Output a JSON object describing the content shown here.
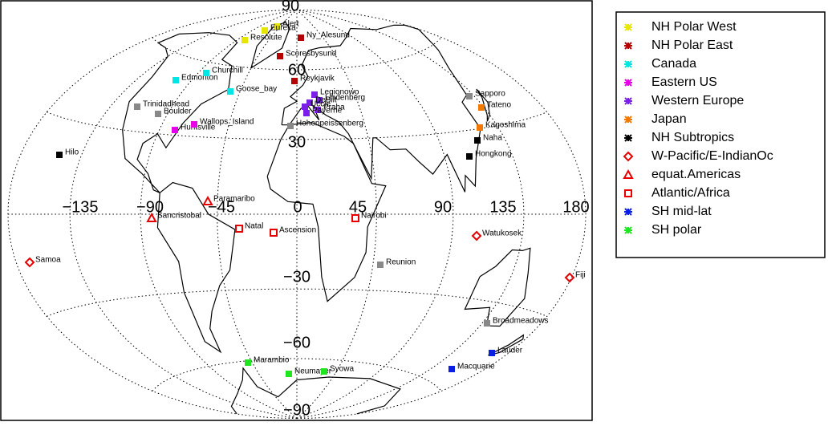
{
  "map": {
    "lat_labels": [
      "90",
      "60",
      "30",
      "−30",
      "−60",
      "−90"
    ],
    "lon_labels": [
      "−135",
      "−90",
      "−45",
      "0",
      "45",
      "90",
      "135",
      "180"
    ],
    "stations": [
      "Alert",
      "Eureka",
      "Resolute",
      "Ny_Alesund",
      "Scoresbysund",
      "Reykjavik",
      "Edmonton",
      "Churchill",
      "Goose_bay",
      "Huntsville",
      "Wallops_Island",
      "Legionowo",
      "Lindenberg",
      "DeBilt",
      "Uccle",
      "Praha",
      "Payerne",
      "Tateno",
      "Kagoshima",
      "Hilo",
      "Naha",
      "Hongkong",
      "Samoa",
      "Watukosek",
      "Fiji",
      "Paramaribo",
      "Sancristobal",
      "Natal",
      "Ascension",
      "Nairobi",
      "Lauder",
      "Macquarie",
      "Marambio",
      "Neumayer",
      "Syowa",
      "Trinidadhead",
      "Boulder",
      "Sapporo",
      "Hohenpeissenberg",
      "Reunion",
      "Broadmeadows"
    ]
  },
  "legend": {
    "items": [
      {
        "label": "NH Polar West",
        "color": "#e6e600"
      },
      {
        "label": "NH Polar East",
        "color": "#b30000"
      },
      {
        "label": "Canada",
        "color": "#00e6e6"
      },
      {
        "label": "Eastern US",
        "color": "#e600e6"
      },
      {
        "label": "Western Europe",
        "color": "#7a1fe6"
      },
      {
        "label": "Japan",
        "color": "#f07a00"
      },
      {
        "label": "NH Subtropics",
        "color": "#000000"
      },
      {
        "label": "W-Pacific/E-IndianOc",
        "color": "#e60000"
      },
      {
        "label": "equat.Americas",
        "color": "#e60000"
      },
      {
        "label": "Atlantic/Africa",
        "color": "#e60000"
      },
      {
        "label": "SH mid-lat",
        "color": "#0a1fe6"
      },
      {
        "label": "SH polar",
        "color": "#1fe61f"
      }
    ]
  }
}
